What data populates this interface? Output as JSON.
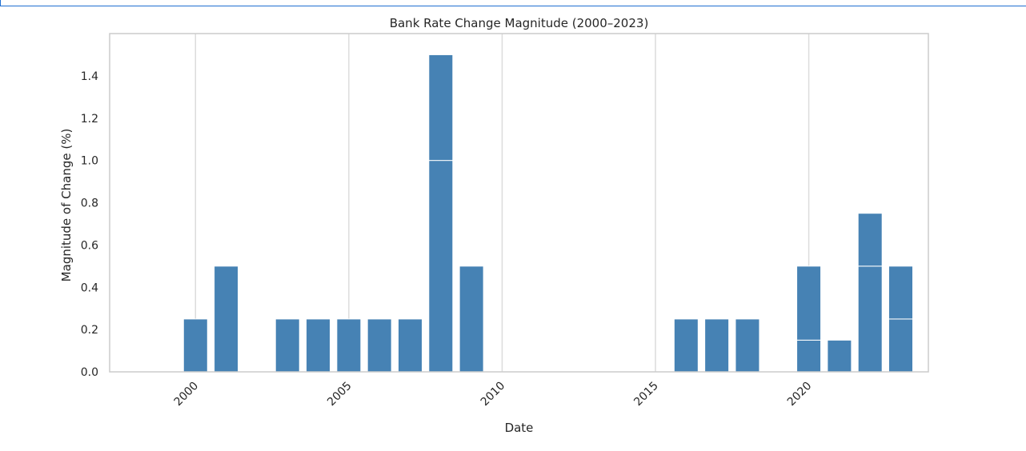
{
  "chart_data": {
    "type": "bar",
    "title": "Bank Rate Change Magnitude (2000–2023)",
    "xlabel": "Date",
    "ylabel": "Magnitude of Change (%)",
    "xlim": [
      1997.2,
      2023.9
    ],
    "ylim": [
      0,
      1.6
    ],
    "grid": "vertical",
    "xticks": [
      2000,
      2005,
      2010,
      2015,
      2020
    ],
    "yticks": [
      0.0,
      0.2,
      0.4,
      0.6,
      0.8,
      1.0,
      1.2,
      1.4
    ],
    "ytick_labels": [
      "0.0",
      "0.2",
      "0.4",
      "0.6",
      "0.8",
      "1.0",
      "1.2",
      "1.4"
    ],
    "bar_color": "#4682b4",
    "grid_color": "#dcdcdc",
    "bars": [
      {
        "year": 2000,
        "segments": [
          0.25
        ]
      },
      {
        "year": 2001,
        "segments": [
          0.5
        ]
      },
      {
        "year": 2003,
        "segments": [
          0.25
        ]
      },
      {
        "year": 2004,
        "segments": [
          0.25
        ]
      },
      {
        "year": 2005,
        "segments": [
          0.25
        ]
      },
      {
        "year": 2006,
        "segments": [
          0.25
        ]
      },
      {
        "year": 2007,
        "segments": [
          0.25
        ]
      },
      {
        "year": 2008,
        "segments": [
          1.0,
          0.5
        ]
      },
      {
        "year": 2009,
        "segments": [
          0.5
        ]
      },
      {
        "year": 2016,
        "segments": [
          0.25
        ]
      },
      {
        "year": 2017,
        "segments": [
          0.25
        ]
      },
      {
        "year": 2018,
        "segments": [
          0.25
        ]
      },
      {
        "year": 2020,
        "segments": [
          0.15,
          0.35
        ]
      },
      {
        "year": 2021,
        "segments": [
          0.15
        ]
      },
      {
        "year": 2022,
        "segments": [
          0.5,
          0.25
        ]
      },
      {
        "year": 2023,
        "segments": [
          0.25,
          0.25
        ]
      }
    ]
  }
}
